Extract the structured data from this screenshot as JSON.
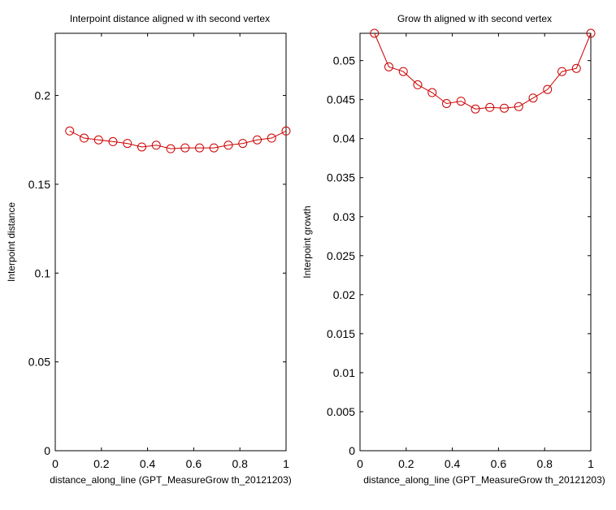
{
  "chart_data": [
    {
      "type": "line",
      "title": "Interpoint distance aligned w ith second vertex",
      "xlabel": "distance_along_line (GPT_MeasureGrow th_20121203)",
      "ylabel": "Interpoint distance",
      "xlim": [
        0,
        1
      ],
      "ylim": [
        0,
        0.235
      ],
      "xticks": [
        0,
        0.2,
        0.4,
        0.6,
        0.8,
        1
      ],
      "xtick_labels": [
        "0",
        "0.2",
        "0.4",
        "0.6",
        "0.8",
        "1"
      ],
      "yticks": [
        0,
        0.05,
        0.1,
        0.15,
        0.2
      ],
      "ytick_labels": [
        "0",
        "0.05",
        "0.1",
        "0.15",
        "0.2"
      ],
      "grid": false,
      "series_color": "#cc0000",
      "marker": "circle",
      "x": [
        0.0625,
        0.125,
        0.1875,
        0.25,
        0.3125,
        0.375,
        0.4375,
        0.5,
        0.5625,
        0.625,
        0.6875,
        0.75,
        0.8125,
        0.875,
        0.9375,
        1.0
      ],
      "y": [
        0.18,
        0.176,
        0.175,
        0.174,
        0.173,
        0.171,
        0.172,
        0.17,
        0.1705,
        0.1705,
        0.1705,
        0.172,
        0.173,
        0.175,
        0.176,
        0.18
      ]
    },
    {
      "type": "line",
      "title": "Grow th aligned w ith second vertex",
      "xlabel": "distance_along_line (GPT_MeasureGrow th_20121203)",
      "ylabel": "Interpoint growth",
      "xlim": [
        0,
        1
      ],
      "ylim": [
        0,
        0.0535
      ],
      "xticks": [
        0,
        0.2,
        0.4,
        0.6,
        0.8,
        1
      ],
      "xtick_labels": [
        "0",
        "0.2",
        "0.4",
        "0.6",
        "0.8",
        "1"
      ],
      "yticks": [
        0,
        0.005,
        0.01,
        0.015,
        0.02,
        0.025,
        0.03,
        0.035,
        0.04,
        0.045,
        0.05
      ],
      "ytick_labels": [
        "0",
        "0.005",
        "0.01",
        "0.015",
        "0.02",
        "0.025",
        "0.03",
        "0.035",
        "0.04",
        "0.045",
        "0.05"
      ],
      "grid": false,
      "series_color": "#cc0000",
      "marker": "circle",
      "x": [
        0.0625,
        0.125,
        0.1875,
        0.25,
        0.3125,
        0.375,
        0.4375,
        0.5,
        0.5625,
        0.625,
        0.6875,
        0.75,
        0.8125,
        0.875,
        0.9375,
        1.0
      ],
      "y": [
        0.0535,
        0.0492,
        0.0486,
        0.0469,
        0.0459,
        0.0445,
        0.0448,
        0.0438,
        0.044,
        0.0439,
        0.0441,
        0.0452,
        0.0463,
        0.0486,
        0.049,
        0.0535
      ]
    }
  ]
}
